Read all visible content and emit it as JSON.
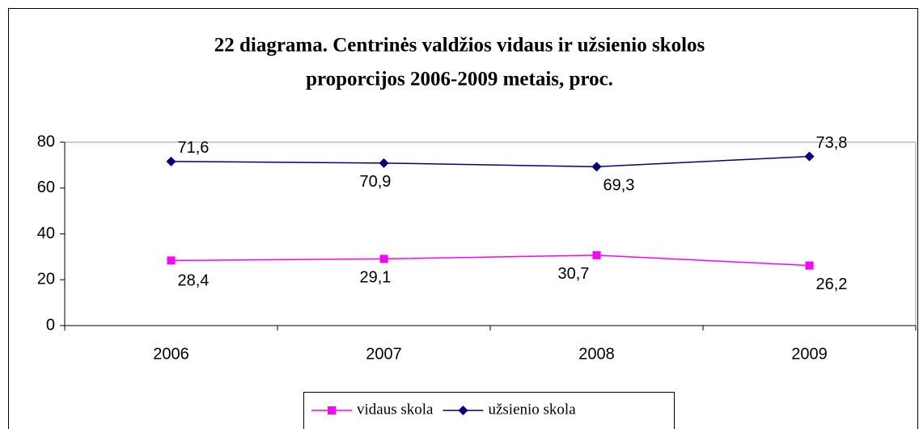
{
  "chart_data": {
    "type": "line",
    "title": [
      "22 diagrama. Centrinės valdžios vidaus ir užsienio skolos",
      "proporcijos 2006-2009 metais, proc."
    ],
    "categories": [
      "2006",
      "2007",
      "2008",
      "2009"
    ],
    "series": [
      {
        "name": "vidaus skola",
        "color": "#ff00ff",
        "marker": "square",
        "values": [
          28.4,
          29.1,
          30.7,
          26.2
        ],
        "value_labels": [
          "28,4",
          "29,1",
          "30,7",
          "26,2"
        ]
      },
      {
        "name": "užsienio skola",
        "color": "#000080",
        "marker": "diamond",
        "values": [
          71.6,
          70.9,
          69.3,
          73.8
        ],
        "value_labels": [
          "71,6",
          "70,9",
          "69,3",
          "73,8"
        ]
      }
    ],
    "ylim": [
      0,
      80
    ],
    "yticks": [
      0,
      20,
      40,
      60,
      80
    ],
    "legend": "bottom"
  }
}
